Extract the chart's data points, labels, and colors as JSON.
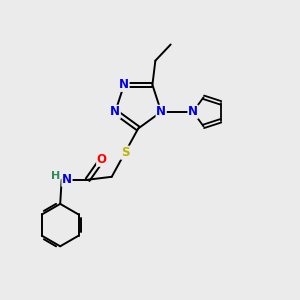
{
  "background_color": "#ebebeb",
  "bond_color": "#000000",
  "atom_colors": {
    "N": "#0000e6",
    "S": "#b8b800",
    "O": "#ff0000",
    "H": "#2e8b57",
    "C": "#000000"
  },
  "figsize": [
    3.0,
    3.0
  ],
  "dpi": 100,
  "lw": 1.4,
  "fs": 8.5
}
